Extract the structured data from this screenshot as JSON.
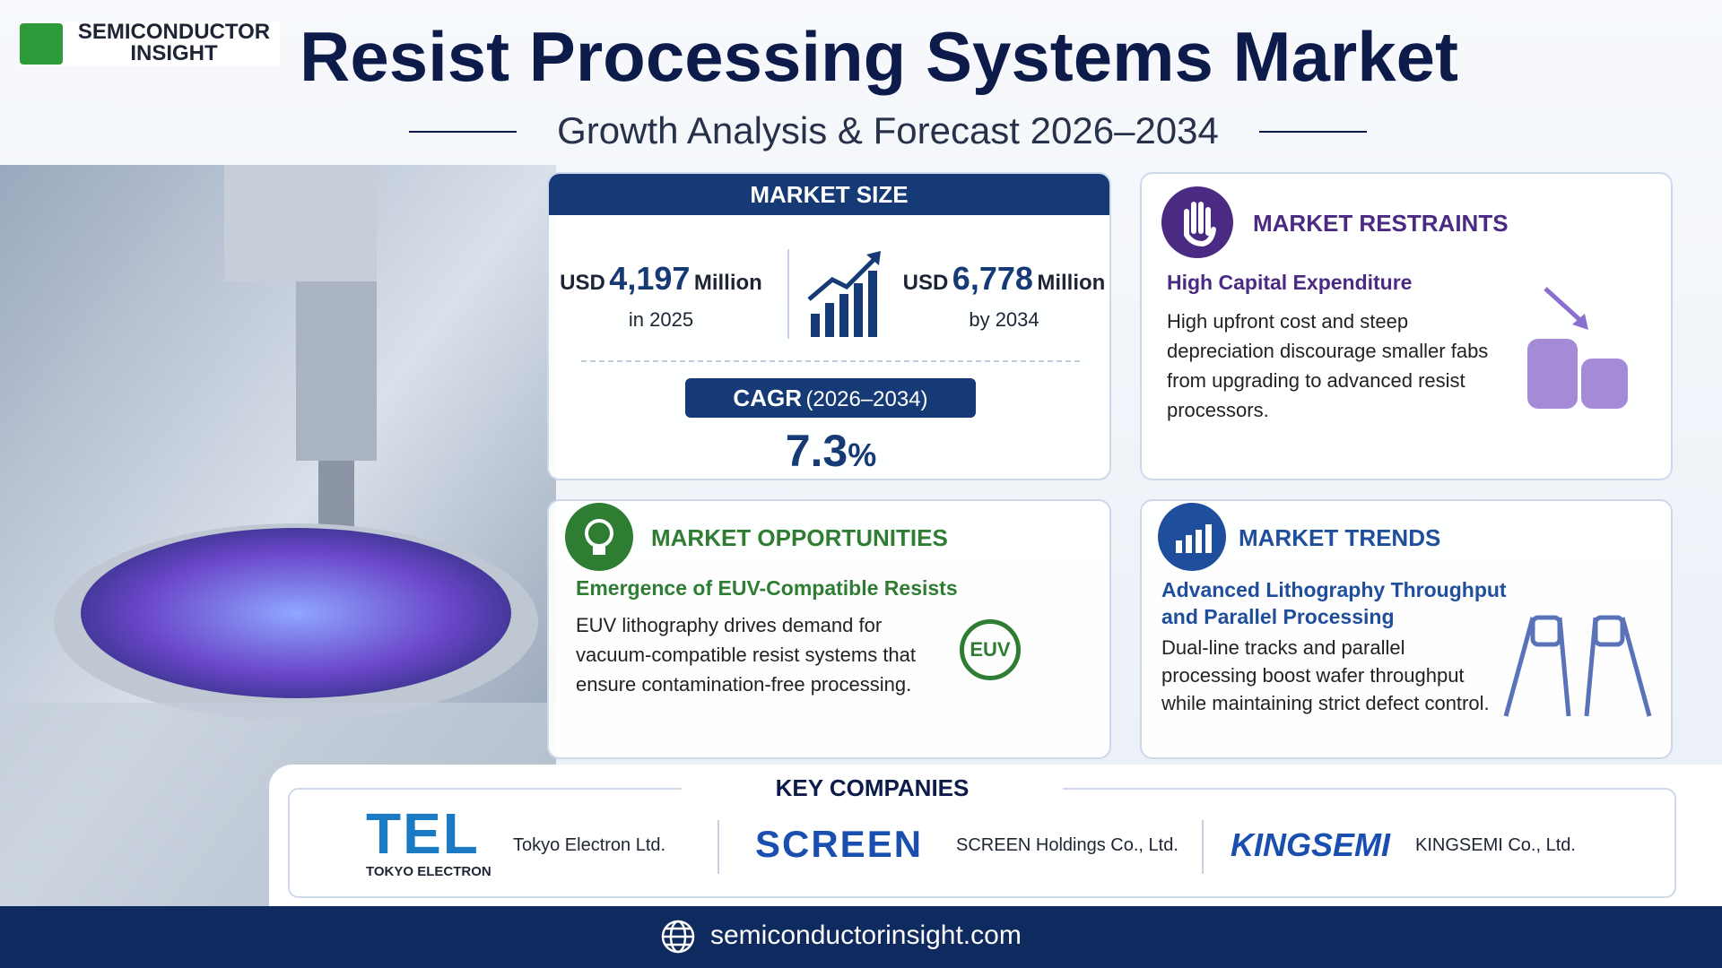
{
  "header": {
    "brand_line1": "SEMICONDUCTOR",
    "brand_line2": "INSIGHT",
    "title": "Resist Processing Systems Market",
    "subtitle": "Growth Analysis & Forecast 2026–2034"
  },
  "market_size": {
    "heading": "MARKET SIZE",
    "start": {
      "prefix": "USD",
      "value": "4,197",
      "unit": "Million",
      "period": "in 2025"
    },
    "end": {
      "prefix": "USD",
      "value": "6,778",
      "unit": "Million",
      "period": "by 2034"
    },
    "cagr_label": "CAGR",
    "cagr_period": "(2026–2034)",
    "cagr_value": "7.3",
    "cagr_unit": "%"
  },
  "restraints": {
    "heading": "MARKET RESTRAINTS",
    "subheading": "High Capital Expenditure",
    "text": "High upfront cost and steep depreciation discourage smaller fabs from upgrading to advanced resist processors."
  },
  "opportunities": {
    "heading": "MARKET OPPORTUNITIES",
    "subheading": "Emergence of EUV-Compatible Resists",
    "text": "EUV lithography drives demand for vacuum-compatible resist systems that ensure contamination-free processing.",
    "icon_label": "EUV"
  },
  "trends": {
    "heading": "MARKET TRENDS",
    "subheading": "Advanced Lithography Throughput and Parallel Processing",
    "text": "Dual-line tracks and parallel processing boost wafer throughput while maintaining strict defect control."
  },
  "companies": {
    "heading": "KEY COMPANIES",
    "items": [
      {
        "logo": "TEL",
        "logo_sub": "TOKYO ELECTRON",
        "name": "Tokyo Electron Ltd."
      },
      {
        "logo": "SCREEN",
        "name": "SCREEN Holdings Co., Ltd."
      },
      {
        "logo": "KINGSEMI",
        "name": "KINGSEMI Co., Ltd."
      }
    ]
  },
  "footer": {
    "url": "semiconductorinsight.com"
  }
}
